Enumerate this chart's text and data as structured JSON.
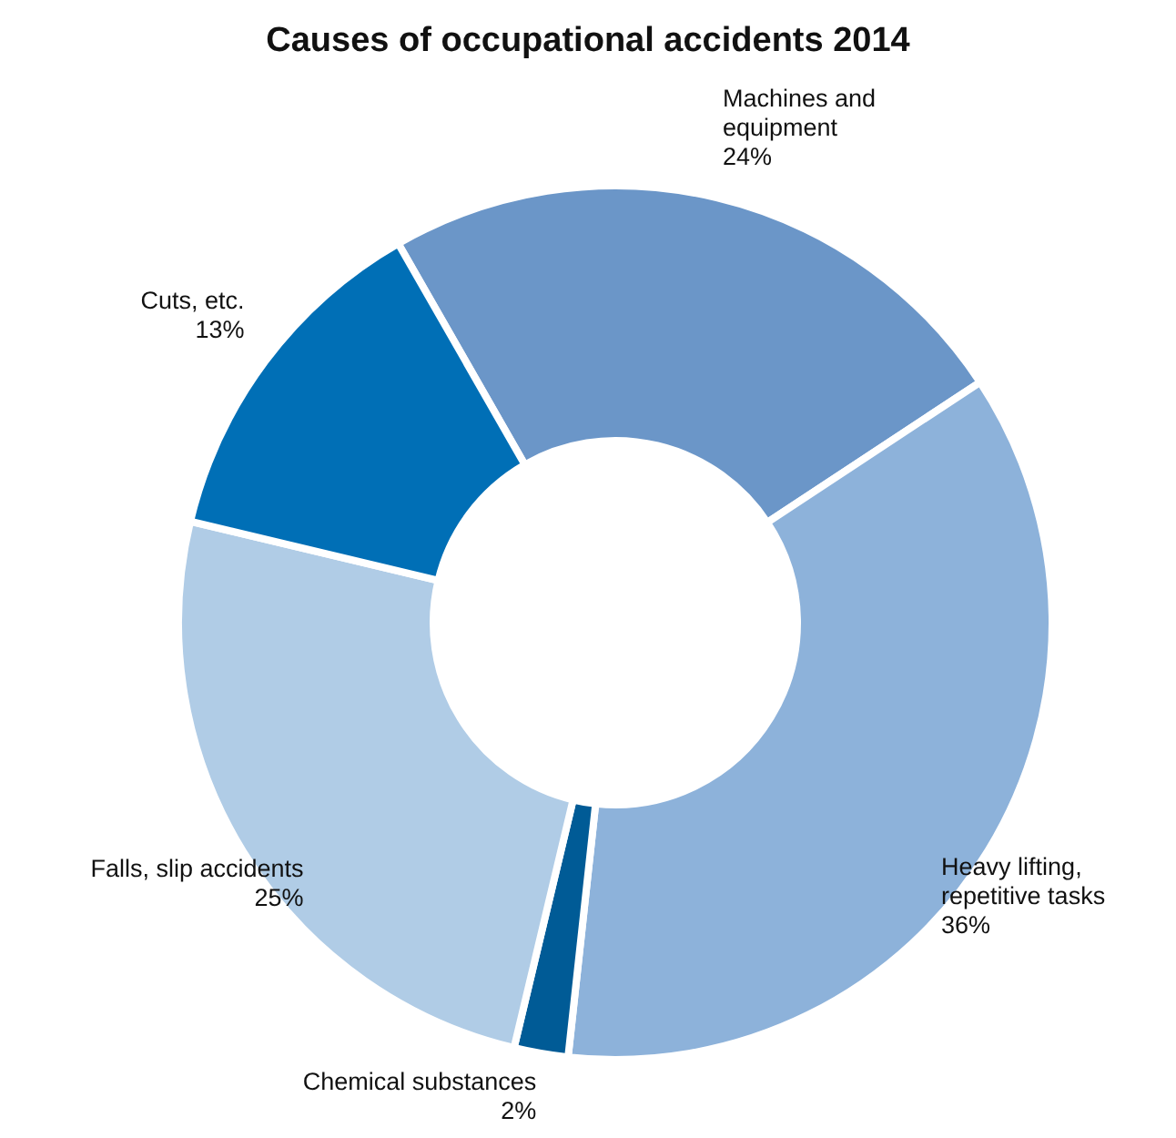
{
  "chart_data": {
    "type": "donut",
    "title": "Causes of occupational accidents 2014",
    "categories": [
      "Machines and\nequipment",
      "Heavy lifting,\nrepetitive tasks",
      "Chemical substances",
      "Falls, slip accidents",
      "Cuts, etc."
    ],
    "values": [
      24,
      36,
      2,
      25,
      13
    ],
    "colors": [
      "#6b96c8",
      "#8db2da",
      "#005b96",
      "#b0cce6",
      "#006fb6"
    ],
    "value_labels": [
      "24%",
      "36%",
      "2%",
      "25%",
      "13%"
    ]
  }
}
